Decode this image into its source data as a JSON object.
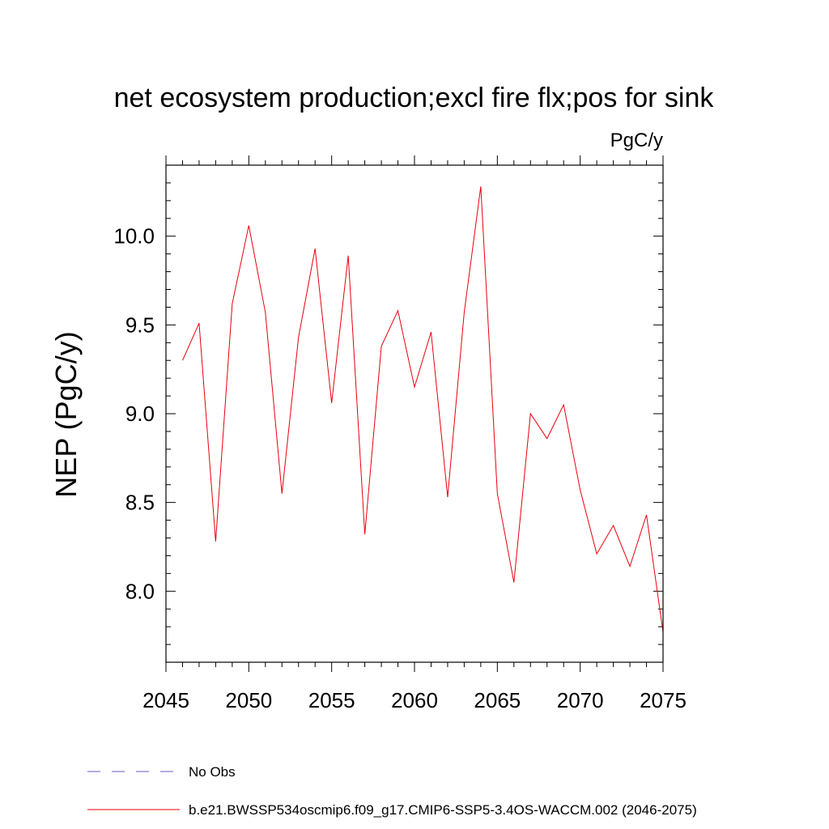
{
  "chart_data": {
    "type": "line",
    "title": "net ecosystem production;excl fire flx;pos for sink",
    "units": "PgC/y",
    "xlabel": "",
    "ylabel": "NEP  (PgC/y)",
    "xlim": [
      2045,
      2075
    ],
    "ylim": [
      7.6,
      10.4
    ],
    "x_ticks": [
      2045,
      2050,
      2055,
      2060,
      2065,
      2070,
      2075
    ],
    "y_ticks": [
      8.0,
      8.5,
      9.0,
      9.5,
      10.0
    ],
    "x_tick_labels": [
      "2045",
      "2050",
      "2055",
      "2060",
      "2065",
      "2070",
      "2075"
    ],
    "y_tick_labels": [
      "8.0",
      "8.5",
      "9.0",
      "9.5",
      "10.0"
    ],
    "grid": false,
    "legend_position": "bottom",
    "series": [
      {
        "name": "b.e21.BWSSP534oscmip6.f09_g17.CMIP6-SSP5-3.4OS-WACCM.002 (2046-2075)",
        "color": "#e8000b",
        "dash": "solid",
        "x": [
          2046,
          2047,
          2048,
          2049,
          2050,
          2051,
          2052,
          2053,
          2054,
          2055,
          2056,
          2057,
          2058,
          2059,
          2060,
          2061,
          2062,
          2063,
          2064,
          2065,
          2066,
          2067,
          2068,
          2069,
          2070,
          2071,
          2072,
          2073,
          2074,
          2075
        ],
        "y": [
          9.3,
          9.51,
          8.28,
          9.62,
          10.06,
          9.57,
          8.55,
          9.43,
          9.93,
          9.06,
          9.89,
          8.32,
          9.38,
          9.58,
          9.15,
          9.46,
          8.53,
          9.57,
          10.28,
          8.55,
          8.05,
          9.0,
          8.86,
          9.05,
          8.57,
          8.21,
          8.37,
          8.14,
          8.43,
          7.77
        ]
      }
    ],
    "legend": [
      {
        "label": "No Obs",
        "color": "#6a5acd",
        "dash": "dashed"
      },
      {
        "label": "b.e21.BWSSP534oscmip6.f09_g17.CMIP6-SSP5-3.4OS-WACCM.002 (2046-2075)",
        "color": "#e8000b",
        "dash": "solid"
      }
    ]
  }
}
